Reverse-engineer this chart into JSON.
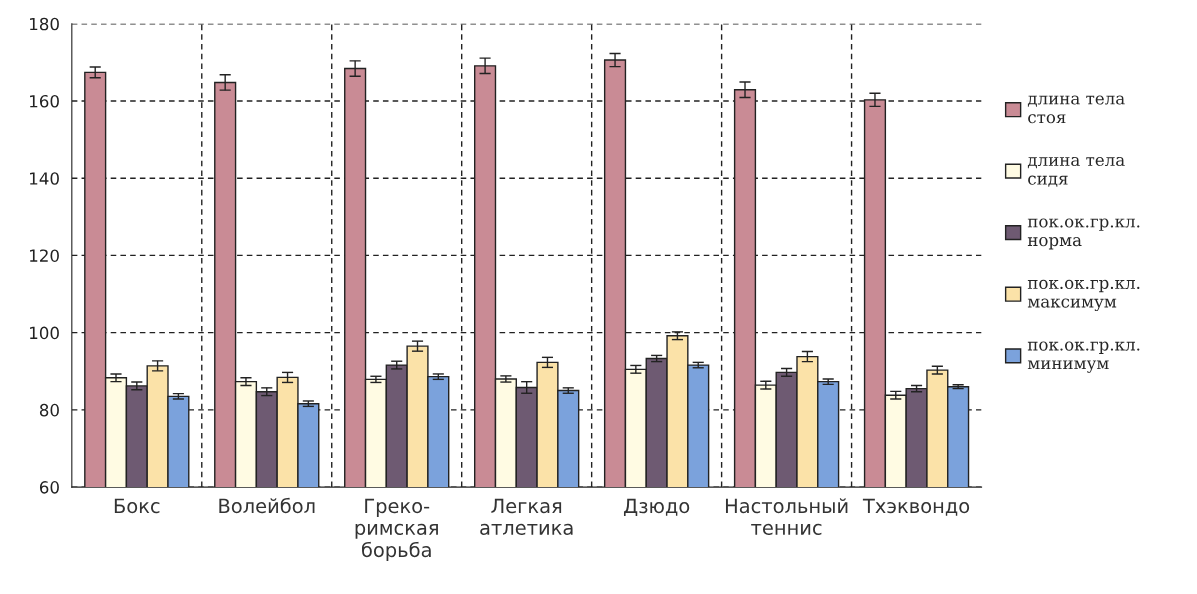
{
  "chart_data": {
    "type": "bar",
    "categories": [
      "Бокс",
      "Волейбол",
      "Греко-римская борьба",
      "Легкая атлетика",
      "Дзюдо",
      "Настольный теннис",
      "Тхэквондо"
    ],
    "series": [
      {
        "name": "длина тела стоя",
        "color": "#c98b95",
        "values": [
          167.4,
          164.8,
          168.4,
          169.1,
          170.6,
          162.9,
          160.3
        ],
        "errors": [
          1.4,
          2,
          2,
          2,
          1.7,
          2,
          1.7
        ]
      },
      {
        "name": "длина тела сидя",
        "color": "#fffbe3",
        "values": [
          88.3,
          87.3,
          87.9,
          88.0,
          90.5,
          86.4,
          83.8
        ],
        "errors": [
          1,
          1,
          0.8,
          0.8,
          1,
          1,
          1
        ]
      },
      {
        "name": "пок.ок.гр.кл. норма",
        "color": "#6e5a72",
        "values": [
          86.2,
          84.7,
          91.6,
          85.8,
          93.3,
          89.7,
          85.5
        ],
        "errors": [
          1,
          1,
          1,
          1.5,
          0.8,
          1,
          0.8
        ]
      },
      {
        "name": "пок.ок.гр.кл. максимум",
        "color": "#fbe2a8",
        "values": [
          91.4,
          88.4,
          96.5,
          92.3,
          99.2,
          93.8,
          90.3
        ],
        "errors": [
          1.3,
          1.3,
          1.3,
          1.3,
          1,
          1.3,
          1
        ]
      },
      {
        "name": "пок.ок.гр.кл. минимум",
        "color": "#7ba2dc",
        "values": [
          83.5,
          81.6,
          88.6,
          85.0,
          91.6,
          87.3,
          86.0
        ],
        "errors": [
          0.7,
          0.7,
          0.7,
          0.7,
          0.7,
          0.7,
          0.5
        ]
      }
    ],
    "ylim": [
      60,
      180
    ],
    "yticks": [
      60,
      80,
      100,
      120,
      140,
      160,
      180
    ],
    "grid": true,
    "legend": "right"
  }
}
